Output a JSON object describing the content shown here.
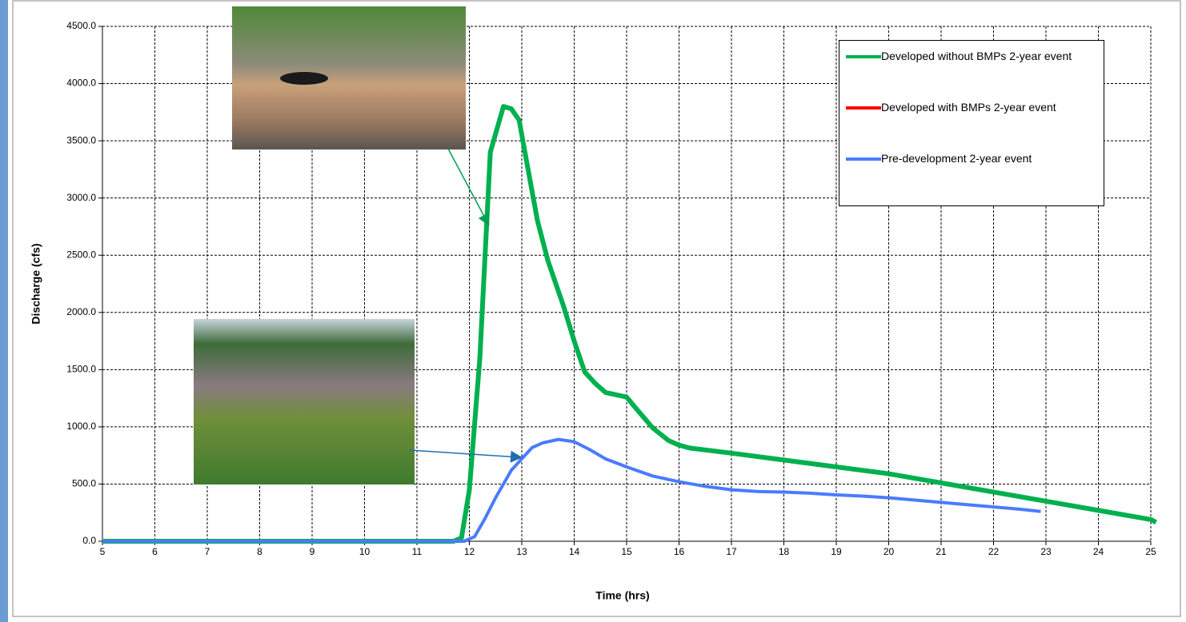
{
  "chart_data": {
    "type": "line",
    "xlabel": "Time (hrs)",
    "ylabel": "Discharge (cfs)",
    "xlim": [
      5,
      25
    ],
    "ylim": [
      0,
      4500
    ],
    "xticks": [
      5,
      6,
      7,
      8,
      9,
      10,
      11,
      12,
      13,
      14,
      15,
      16,
      17,
      18,
      19,
      20,
      21,
      22,
      23,
      24,
      25
    ],
    "yticks": [
      {
        "value": 0,
        "label": "0.0"
      },
      {
        "value": 500,
        "label": "500.0"
      },
      {
        "value": 1000,
        "label": "1000.0"
      },
      {
        "value": 1500,
        "label": "1500.0"
      },
      {
        "value": 2000,
        "label": "2000.0"
      },
      {
        "value": 2500,
        "label": "2500.0"
      },
      {
        "value": 3000,
        "label": "3000.0"
      },
      {
        "value": 3500,
        "label": "3500.0"
      },
      {
        "value": 4000,
        "label": "4000.0"
      },
      {
        "value": 4500,
        "label": "4500.0"
      }
    ],
    "grid": true,
    "legend": "upper right",
    "series": [
      {
        "name": "Developed with BMPs 2-year event",
        "color": "#ff0000",
        "width": 3,
        "x": [
          5,
          11.7,
          11.85,
          12,
          12.2,
          12.4,
          12.65,
          12.8,
          12.95,
          13.1,
          13.3,
          13.5,
          13.8,
          14.0,
          14.2,
          14.4,
          14.6,
          14.8,
          15.0,
          15.2,
          15.5,
          15.8,
          16.0,
          16.2,
          17,
          18,
          19,
          20,
          21,
          22,
          23,
          24,
          25,
          25.1
        ],
        "values": [
          0,
          0,
          30,
          450,
          1600,
          3400,
          3800,
          3780,
          3680,
          3300,
          2800,
          2430,
          2030,
          1730,
          1470,
          1370,
          1300,
          1280,
          1250,
          1140,
          980,
          870,
          830,
          810,
          770,
          710,
          650,
          590,
          510,
          430,
          350,
          270,
          190,
          165
        ]
      },
      {
        "name": "Developed without BMPs 2-year event",
        "color": "#00b050",
        "width": 6,
        "x": [
          5,
          11.7,
          11.85,
          12,
          12.2,
          12.4,
          12.65,
          12.8,
          12.95,
          13.1,
          13.3,
          13.5,
          13.8,
          14.0,
          14.2,
          14.4,
          14.6,
          14.8,
          15.0,
          15.2,
          15.5,
          15.8,
          16.0,
          16.2,
          17,
          18,
          19,
          20,
          21,
          22,
          23,
          24,
          25,
          25.1
        ],
        "values": [
          0,
          0,
          30,
          450,
          1600,
          3400,
          3800,
          3780,
          3680,
          3300,
          2800,
          2450,
          2050,
          1750,
          1480,
          1380,
          1300,
          1280,
          1260,
          1150,
          990,
          880,
          840,
          815,
          770,
          710,
          650,
          590,
          510,
          430,
          350,
          270,
          190,
          165
        ]
      },
      {
        "name": "Pre-development 2-year event",
        "color": "#4a7bff",
        "width": 4,
        "x": [
          5,
          11.9,
          12.1,
          12.3,
          12.5,
          12.8,
          13.0,
          13.2,
          13.4,
          13.7,
          14.0,
          14.3,
          14.6,
          15.0,
          15.5,
          16.0,
          16.5,
          17.0,
          17.5,
          18.0,
          18.5,
          19.0,
          19.5,
          20.0,
          20.5,
          21.0,
          21.5,
          22.0,
          22.5,
          22.9
        ],
        "values": [
          0,
          0,
          40,
          200,
          380,
          620,
          720,
          820,
          860,
          890,
          870,
          800,
          720,
          650,
          570,
          520,
          480,
          450,
          435,
          430,
          420,
          405,
          395,
          380,
          360,
          340,
          320,
          300,
          280,
          260
        ]
      }
    ],
    "legend_order": [
      1,
      0,
      2
    ]
  }
}
